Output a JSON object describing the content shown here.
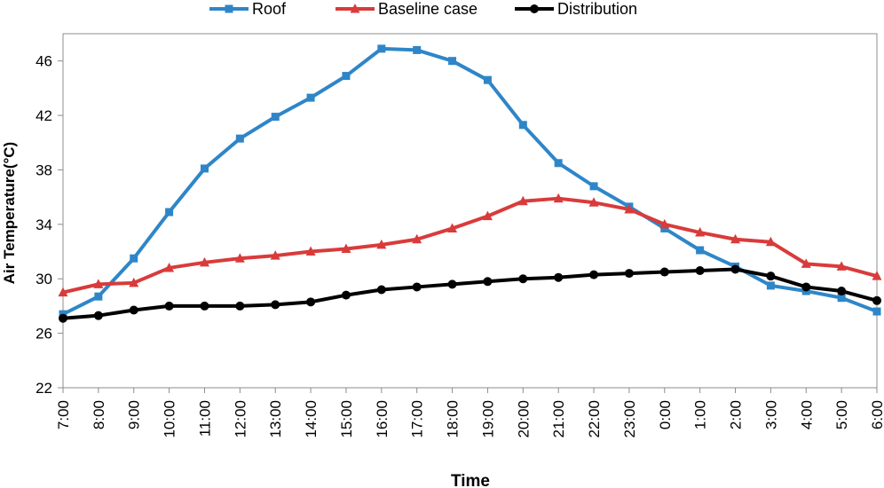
{
  "chart_data": {
    "type": "line",
    "title": "",
    "xlabel": "Time",
    "ylabel": "Air Temperature(°C)",
    "ylim": [
      22,
      48
    ],
    "yticks": [
      22,
      26,
      30,
      34,
      38,
      42,
      46
    ],
    "grid": false,
    "legend_position": "top",
    "categories": [
      "7:00",
      "8:00",
      "9:00",
      "10:00",
      "11:00",
      "12:00",
      "13:00",
      "14:00",
      "15:00",
      "16:00",
      "17:00",
      "18:00",
      "19:00",
      "20:00",
      "21:00",
      "22:00",
      "23:00",
      "0:00",
      "1:00",
      "2:00",
      "3:00",
      "4:00",
      "5:00",
      "6:00"
    ],
    "series": [
      {
        "name": "Roof",
        "color": "#2E86C8",
        "marker": "square",
        "values": [
          27.4,
          28.7,
          31.5,
          34.9,
          38.1,
          40.3,
          41.9,
          43.3,
          44.9,
          46.9,
          46.8,
          46.0,
          44.6,
          41.3,
          38.5,
          36.8,
          35.3,
          33.7,
          32.1,
          30.9,
          29.5,
          29.1,
          28.6,
          27.6
        ]
      },
      {
        "name": "Baseline case",
        "color": "#D93B3B",
        "marker": "triangle",
        "values": [
          29.0,
          29.6,
          29.7,
          30.8,
          31.2,
          31.5,
          31.7,
          32.0,
          32.2,
          32.5,
          32.9,
          33.7,
          34.6,
          35.7,
          35.9,
          35.6,
          35.1,
          34.0,
          33.4,
          32.9,
          32.7,
          31.1,
          30.9,
          30.2
        ]
      },
      {
        "name": "Distribution",
        "color": "#000000",
        "marker": "circle",
        "values": [
          27.1,
          27.3,
          27.7,
          28.0,
          28.0,
          28.0,
          28.1,
          28.3,
          28.8,
          29.2,
          29.4,
          29.6,
          29.8,
          30.0,
          30.1,
          30.3,
          30.4,
          30.5,
          30.6,
          30.7,
          30.2,
          29.4,
          29.1,
          28.4
        ]
      }
    ]
  }
}
